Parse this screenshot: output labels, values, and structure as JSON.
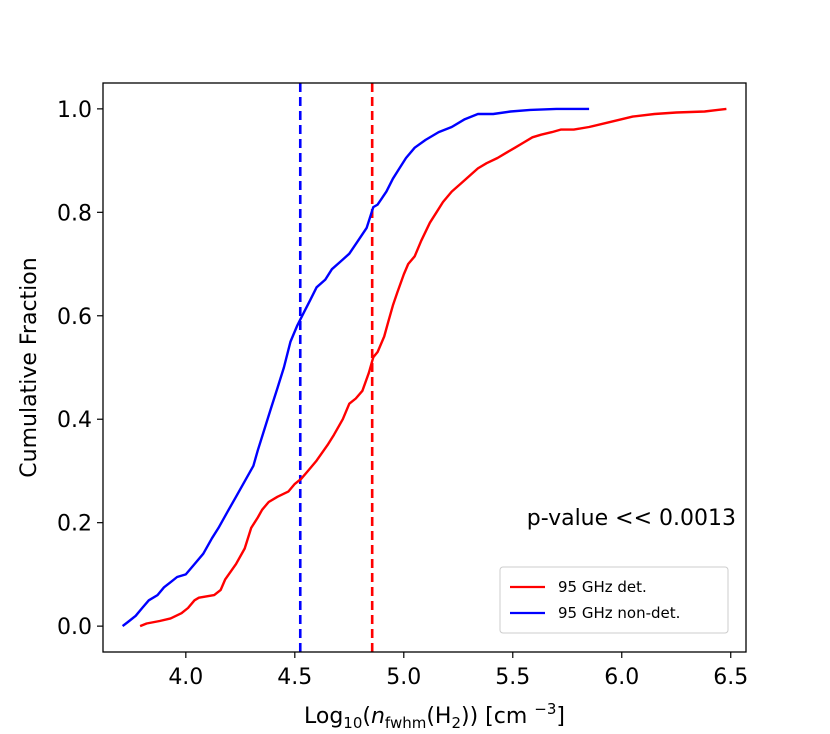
{
  "chart_data": {
    "type": "line",
    "title": "",
    "xlabel": {
      "prefix": "Log",
      "prefix_sub": "10",
      "open": "(",
      "n": "n",
      "n_sub": "fwhm",
      "h_open": "(H",
      "h_sub": "2",
      "close": ")) [cm ",
      "exp": "−3",
      "end": "]"
    },
    "ylabel": "Cumulative Fraction",
    "xlim": [
      3.62,
      6.57
    ],
    "ylim": [
      -0.05,
      1.05
    ],
    "xticks": [
      4.0,
      4.5,
      5.0,
      5.5,
      6.0,
      6.5
    ],
    "xtick_labels": [
      "4.0",
      "4.5",
      "5.0",
      "5.5",
      "6.0",
      "6.5"
    ],
    "yticks": [
      0.0,
      0.2,
      0.4,
      0.6,
      0.8,
      1.0
    ],
    "ytick_labels": [
      "0.0",
      "0.2",
      "0.4",
      "0.6",
      "0.8",
      "1.0"
    ],
    "grid": false,
    "legend_position": "lower-right",
    "annotation": "p-value << 0.0013",
    "medians": [
      {
        "x": 4.525,
        "color": "#0000ff",
        "style": "dashed"
      },
      {
        "x": 4.855,
        "color": "#ff0000",
        "style": "dashed"
      }
    ],
    "series": [
      {
        "name": "95 GHz det.",
        "color": "#ff0000",
        "x": [
          3.79,
          3.82,
          3.88,
          3.93,
          3.98,
          4.01,
          4.04,
          4.06,
          4.13,
          4.16,
          4.18,
          4.23,
          4.27,
          4.3,
          4.33,
          4.35,
          4.38,
          4.42,
          4.47,
          4.5,
          4.53,
          4.56,
          4.6,
          4.65,
          4.68,
          4.72,
          4.75,
          4.78,
          4.81,
          4.84,
          4.86,
          4.88,
          4.91,
          4.93,
          4.95,
          4.97,
          5.0,
          5.02,
          5.05,
          5.08,
          5.12,
          5.15,
          5.18,
          5.22,
          5.26,
          5.3,
          5.34,
          5.38,
          5.43,
          5.47,
          5.51,
          5.55,
          5.59,
          5.63,
          5.68,
          5.72,
          5.78,
          5.85,
          5.95,
          6.05,
          6.15,
          6.25,
          6.38,
          6.44,
          6.48
        ],
        "y": [
          0.0,
          0.005,
          0.01,
          0.015,
          0.025,
          0.035,
          0.05,
          0.055,
          0.06,
          0.07,
          0.09,
          0.12,
          0.15,
          0.19,
          0.21,
          0.225,
          0.24,
          0.25,
          0.26,
          0.275,
          0.285,
          0.3,
          0.32,
          0.35,
          0.37,
          0.4,
          0.43,
          0.44,
          0.455,
          0.49,
          0.52,
          0.53,
          0.56,
          0.59,
          0.62,
          0.645,
          0.68,
          0.7,
          0.715,
          0.745,
          0.78,
          0.8,
          0.82,
          0.84,
          0.855,
          0.87,
          0.885,
          0.895,
          0.905,
          0.915,
          0.925,
          0.935,
          0.945,
          0.95,
          0.955,
          0.96,
          0.96,
          0.965,
          0.975,
          0.985,
          0.99,
          0.993,
          0.995,
          0.998,
          1.0
        ]
      },
      {
        "name": "95 GHz non-det.",
        "color": "#0000ff",
        "x": [
          3.71,
          3.74,
          3.77,
          3.8,
          3.83,
          3.87,
          3.9,
          3.93,
          3.96,
          4.0,
          4.04,
          4.08,
          4.12,
          4.15,
          4.19,
          4.23,
          4.27,
          4.31,
          4.33,
          4.36,
          4.39,
          4.42,
          4.45,
          4.48,
          4.51,
          4.54,
          4.57,
          4.6,
          4.64,
          4.67,
          4.71,
          4.75,
          4.79,
          4.83,
          4.86,
          4.88,
          4.92,
          4.95,
          4.98,
          5.01,
          5.05,
          5.1,
          5.16,
          5.22,
          5.28,
          5.34,
          5.41,
          5.49,
          5.58,
          5.7,
          5.85
        ],
        "y": [
          0.0,
          0.01,
          0.02,
          0.035,
          0.05,
          0.06,
          0.075,
          0.085,
          0.095,
          0.1,
          0.12,
          0.14,
          0.17,
          0.19,
          0.22,
          0.25,
          0.28,
          0.31,
          0.34,
          0.38,
          0.42,
          0.46,
          0.5,
          0.55,
          0.58,
          0.605,
          0.63,
          0.655,
          0.67,
          0.69,
          0.705,
          0.72,
          0.745,
          0.77,
          0.81,
          0.815,
          0.84,
          0.865,
          0.885,
          0.905,
          0.925,
          0.94,
          0.955,
          0.965,
          0.98,
          0.99,
          0.99,
          0.995,
          0.998,
          1.0,
          1.0
        ]
      }
    ]
  }
}
